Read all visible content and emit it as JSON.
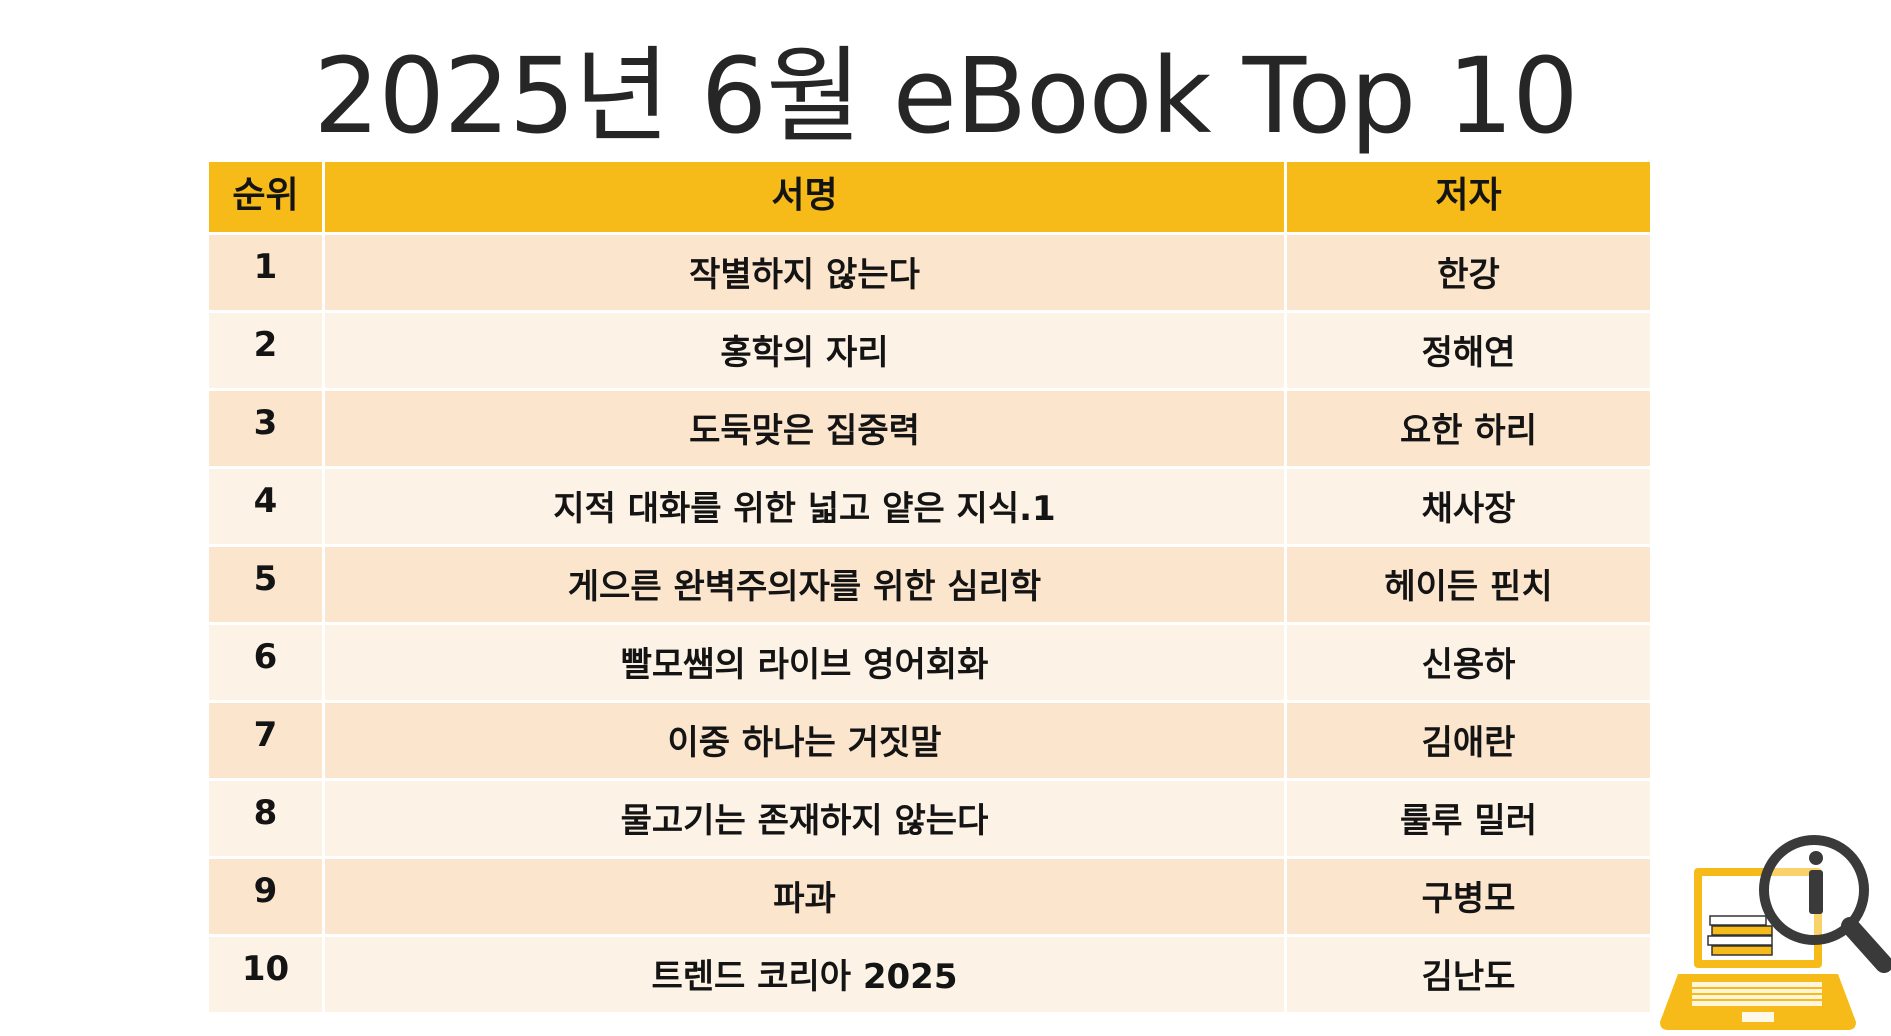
{
  "title": "2025년 6월 eBook Top 10",
  "table": {
    "headers": {
      "rank": "순위",
      "book": "서명",
      "author": "저자"
    },
    "rows": [
      {
        "rank": "1",
        "book": "작별하지 않는다",
        "author": "한강"
      },
      {
        "rank": "2",
        "book": "홍학의 자리",
        "author": "정해연"
      },
      {
        "rank": "3",
        "book": "도둑맞은 집중력",
        "author": "요한 하리"
      },
      {
        "rank": "4",
        "book": "지적 대화를 위한 넓고 얕은 지식.1",
        "author": "채사장"
      },
      {
        "rank": "5",
        "book": "게으른 완벽주의자를 위한 심리학",
        "author": "헤이든 핀치"
      },
      {
        "rank": "6",
        "book": "빨모쌤의 라이브 영어회화",
        "author": "신용하"
      },
      {
        "rank": "7",
        "book": "이중 하나는 거짓말",
        "author": "김애란"
      },
      {
        "rank": "8",
        "book": "물고기는 존재하지 않는다",
        "author": "룰루 밀러"
      },
      {
        "rank": "9",
        "book": "파과",
        "author": "구병모"
      },
      {
        "rank": "10",
        "book": "트렌드 코리아 2025",
        "author": "김난도"
      }
    ]
  },
  "colors": {
    "header_bg": "#f6bb19",
    "row_odd": "#fce5cd",
    "row_even": "#fdf2e6",
    "logo_accent": "#f6bb19"
  },
  "logo": {
    "icon": "laptop-books-magnifier-info-icon"
  }
}
